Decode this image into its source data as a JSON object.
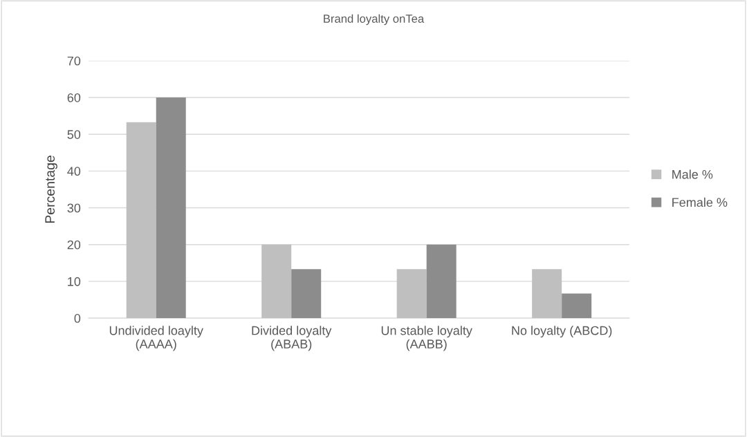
{
  "chart_data": {
    "type": "bar",
    "title": "Brand loyalty onTea",
    "ylabel": "Percentage",
    "categories": [
      "Undivided loaylty\n(AAAA)",
      "Divided loyalty\n(ABAB)",
      "Un stable loyalty\n(AABB)",
      "No loyalty (ABCD)"
    ],
    "series": [
      {
        "name": "Male %",
        "color": "#bfbfbf",
        "values": [
          53.3,
          20,
          13.3,
          13.3
        ]
      },
      {
        "name": "Female %",
        "color": "#8c8c8c",
        "values": [
          60,
          13.3,
          20,
          6.7
        ]
      }
    ],
    "ylim": [
      0,
      70
    ],
    "yticks": [
      0,
      10,
      20,
      30,
      40,
      50,
      60,
      70
    ],
    "grid": "y",
    "legend": "right"
  }
}
